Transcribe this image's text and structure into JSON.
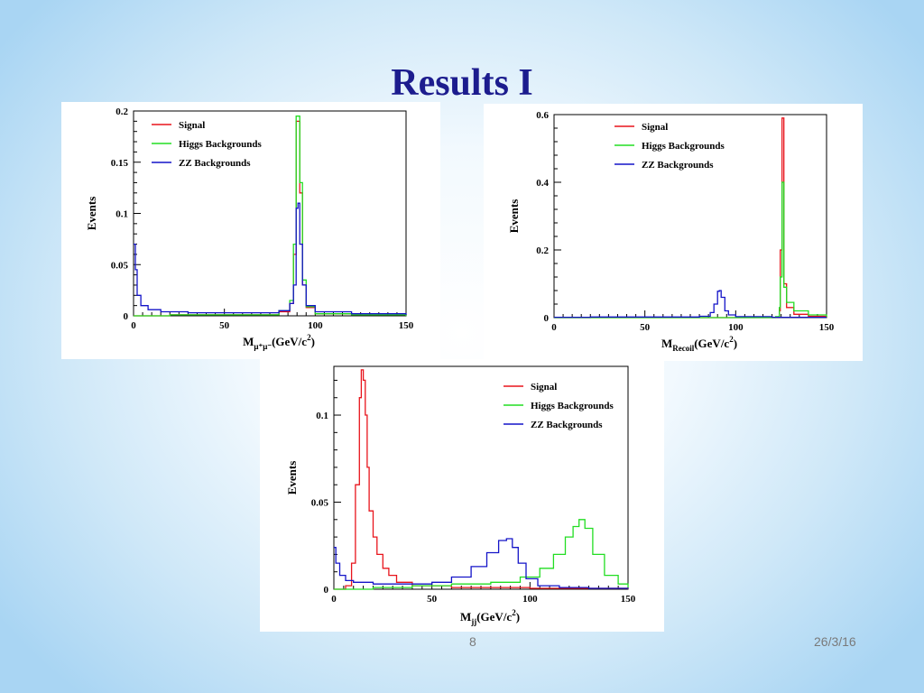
{
  "slide": {
    "title": "Results I",
    "page_number": "8",
    "date": "26/3/16"
  },
  "colors": {
    "signal": "#e8141c",
    "higgs": "#22dd22",
    "zz": "#1414c8",
    "title": "#1c1c8e"
  },
  "chart_data": [
    {
      "type": "line",
      "title": "",
      "ylabel": "Events",
      "xlabel_main": "M",
      "xlabel_sub": "μ⁺μ⁻",
      "xlabel_unit": "(GeV/c",
      "xlabel_sup": "2",
      "xlabel_close": ")",
      "xlim": [
        0,
        150
      ],
      "ylim": [
        0,
        0.2
      ],
      "xticks": [
        0,
        50,
        100,
        150
      ],
      "yticks": [
        0,
        0.05,
        0.1,
        0.15,
        0.2
      ],
      "ytick_labels": [
        "0",
        "0.05",
        "0.1",
        "0.15",
        "0.2"
      ],
      "legend_position": "top-left",
      "series": [
        {
          "name": "Signal",
          "color_key": "signal",
          "x": [
            0,
            20,
            40,
            60,
            80,
            86,
            88,
            89.5,
            90.5,
            91.5,
            93,
            95,
            100,
            120,
            150
          ],
          "y": [
            0,
            0.001,
            0.001,
            0.001,
            0.004,
            0.012,
            0.06,
            0.19,
            0.19,
            0.12,
            0.03,
            0.008,
            0.002,
            0.001,
            0
          ]
        },
        {
          "name": "Higgs Backgrounds",
          "color_key": "higgs",
          "x": [
            0,
            20,
            40,
            60,
            80,
            86,
            88,
            89.5,
            90.5,
            91.5,
            93,
            95,
            100,
            120,
            150
          ],
          "y": [
            0,
            0.001,
            0.001,
            0.001,
            0.005,
            0.015,
            0.07,
            0.195,
            0.195,
            0.13,
            0.035,
            0.009,
            0.002,
            0.001,
            0
          ]
        },
        {
          "name": "ZZ Backgrounds",
          "color_key": "zz",
          "x": [
            0,
            1,
            2,
            4,
            8,
            15,
            30,
            60,
            80,
            86,
            88,
            89.5,
            90.5,
            91.5,
            93,
            95,
            100,
            120,
            150
          ],
          "y": [
            0.07,
            0.045,
            0.02,
            0.01,
            0.006,
            0.004,
            0.003,
            0.003,
            0.005,
            0.012,
            0.03,
            0.105,
            0.11,
            0.07,
            0.03,
            0.01,
            0.004,
            0.002,
            0.001
          ]
        }
      ]
    },
    {
      "type": "line",
      "title": "",
      "ylabel": "Events",
      "xlabel_main": "M",
      "xlabel_sub": "Recoil",
      "xlabel_unit": "(GeV/c",
      "xlabel_sup": "2",
      "xlabel_close": ")",
      "xlim": [
        0,
        150
      ],
      "ylim": [
        0,
        0.6
      ],
      "xticks": [
        0,
        50,
        100,
        150
      ],
      "yticks": [
        0,
        0.2,
        0.4,
        0.6
      ],
      "ytick_labels": [
        "0",
        "0.2",
        "0.4",
        "0.6"
      ],
      "legend_position": "top-right",
      "series": [
        {
          "name": "Signal",
          "color_key": "signal",
          "x": [
            0,
            100,
            122,
            124,
            124.5,
            125.5,
            126.5,
            128,
            132,
            140,
            150
          ],
          "y": [
            0,
            0,
            0.002,
            0.02,
            0.2,
            0.59,
            0.1,
            0.03,
            0.01,
            0.004,
            0.001
          ]
        },
        {
          "name": "Higgs Backgrounds",
          "color_key": "higgs",
          "x": [
            0,
            100,
            122,
            124,
            124.5,
            125.5,
            126.5,
            128,
            132,
            140,
            150
          ],
          "y": [
            0,
            0,
            0.003,
            0.03,
            0.12,
            0.4,
            0.09,
            0.045,
            0.02,
            0.008,
            0.002
          ]
        },
        {
          "name": "ZZ Backgrounds",
          "color_key": "zz",
          "x": [
            0,
            20,
            60,
            80,
            86,
            88,
            90,
            91,
            92,
            94,
            96,
            100,
            120,
            150
          ],
          "y": [
            0.001,
            0.002,
            0.002,
            0.004,
            0.015,
            0.04,
            0.078,
            0.08,
            0.06,
            0.02,
            0.008,
            0.003,
            0.001,
            0.001
          ]
        }
      ]
    },
    {
      "type": "line",
      "title": "",
      "ylabel": "Events",
      "xlabel_main": "M",
      "xlabel_sub": "jj",
      "xlabel_unit": "(GeV/c",
      "xlabel_sup": "2",
      "xlabel_close": ")",
      "xlim": [
        0,
        150
      ],
      "ylim": [
        0,
        0.128
      ],
      "xticks": [
        0,
        50,
        100,
        150
      ],
      "yticks": [
        0,
        0.05,
        0.1
      ],
      "ytick_labels": [
        "0",
        "0.05",
        "0.1"
      ],
      "legend_position": "top-right",
      "series": [
        {
          "name": "Signal",
          "color_key": "signal",
          "x": [
            0,
            6,
            9,
            11,
            13,
            14,
            15,
            16,
            17,
            18,
            20,
            22,
            25,
            28,
            32,
            40,
            60,
            100,
            150
          ],
          "y": [
            0,
            0.002,
            0.015,
            0.06,
            0.11,
            0.126,
            0.12,
            0.1,
            0.07,
            0.045,
            0.03,
            0.02,
            0.012,
            0.008,
            0.004,
            0.002,
            0.001,
            0.0005,
            0
          ]
        },
        {
          "name": "Higgs Backgrounds",
          "color_key": "higgs",
          "x": [
            0,
            20,
            40,
            60,
            80,
            95,
            105,
            112,
            118,
            122,
            125,
            128,
            132,
            138,
            145,
            150
          ],
          "y": [
            0,
            0.001,
            0.002,
            0.003,
            0.004,
            0.007,
            0.012,
            0.02,
            0.03,
            0.036,
            0.04,
            0.035,
            0.02,
            0.008,
            0.003,
            0.001
          ]
        },
        {
          "name": "ZZ Backgrounds",
          "color_key": "zz",
          "x": [
            0,
            1,
            3,
            6,
            10,
            20,
            35,
            50,
            60,
            70,
            78,
            84,
            88,
            91,
            94,
            98,
            104,
            115,
            130,
            150
          ],
          "y": [
            0.024,
            0.015,
            0.008,
            0.005,
            0.004,
            0.003,
            0.003,
            0.004,
            0.007,
            0.013,
            0.021,
            0.028,
            0.029,
            0.024,
            0.015,
            0.006,
            0.002,
            0.001,
            0.0005,
            0.0002
          ]
        }
      ]
    }
  ]
}
